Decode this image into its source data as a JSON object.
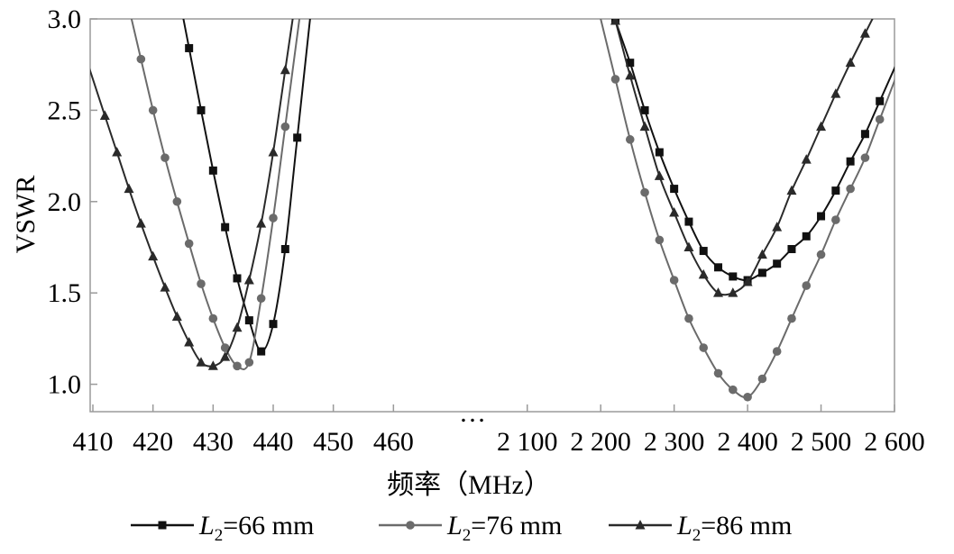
{
  "chart_data": {
    "type": "line",
    "title": "",
    "xlabel": "频率（MHz）",
    "ylabel": "VSWR",
    "ylim": [
      0.85,
      3.0
    ],
    "y_ticks": [
      "1.0",
      "1.5",
      "2.0",
      "2.5",
      "3.0"
    ],
    "y_tick_values": [
      1.0,
      1.5,
      2.0,
      2.5,
      3.0
    ],
    "x_break_symbol": "…",
    "panels": [
      {
        "name": "low-band",
        "xlim": [
          410,
          470
        ],
        "x_ticks": [
          410,
          420,
          430,
          440,
          450,
          460
        ],
        "x_tick_labels": [
          "410",
          "420",
          "430",
          "440",
          "450",
          "460"
        ]
      },
      {
        "name": "high-band",
        "xlim": [
          2050,
          2600
        ],
        "x_ticks": [
          2100,
          2200,
          2300,
          2400,
          2500,
          2600
        ],
        "x_tick_labels": [
          "2 100",
          "2 200",
          "2 300",
          "2 400",
          "2 500",
          "2 600"
        ]
      }
    ],
    "grid": false,
    "legend_position": "bottom",
    "series": [
      {
        "name_main": "L",
        "name_sub": "2",
        "name_rest": "=66 mm",
        "marker": "square",
        "color": "#111111",
        "low_band": {
          "x": [
            426,
            428,
            430,
            432,
            434,
            436,
            438,
            440,
            442,
            444
          ],
          "y": [
            2.84,
            2.5,
            2.17,
            1.86,
            1.58,
            1.35,
            1.18,
            1.33,
            1.74,
            2.35
          ]
        },
        "high_band": {
          "x": [
            2220,
            2240,
            2260,
            2280,
            2300,
            2320,
            2340,
            2360,
            2380,
            2400,
            2420,
            2440,
            2460,
            2480,
            2500,
            2520,
            2540,
            2560,
            2580
          ],
          "y": [
            2.99,
            2.76,
            2.5,
            2.27,
            2.07,
            1.89,
            1.73,
            1.64,
            1.59,
            1.57,
            1.61,
            1.66,
            1.74,
            1.81,
            1.92,
            2.06,
            2.22,
            2.37,
            2.55
          ]
        }
      },
      {
        "name_main": "L",
        "name_sub": "2",
        "name_rest": "=76 mm",
        "marker": "circle",
        "color": "#6b6b6b",
        "low_band": {
          "x": [
            418,
            420,
            422,
            424,
            426,
            428,
            430,
            432,
            434,
            436,
            438,
            440,
            442
          ],
          "y": [
            2.78,
            2.5,
            2.24,
            2.0,
            1.77,
            1.55,
            1.36,
            1.2,
            1.1,
            1.12,
            1.47,
            1.91,
            2.41
          ]
        },
        "high_band": {
          "x": [
            2220,
            2240,
            2260,
            2280,
            2300,
            2320,
            2340,
            2360,
            2380,
            2400,
            2420,
            2440,
            2460,
            2480,
            2500,
            2520,
            2540,
            2560,
            2580
          ],
          "y": [
            2.67,
            2.34,
            2.05,
            1.79,
            1.57,
            1.36,
            1.2,
            1.06,
            0.97,
            0.93,
            1.03,
            1.18,
            1.36,
            1.54,
            1.71,
            1.9,
            2.07,
            2.24,
            2.45
          ]
        }
      },
      {
        "name_main": "L",
        "name_sub": "2",
        "name_rest": "=86 mm",
        "marker": "triangle",
        "color": "#2a2a2a",
        "low_band": {
          "x": [
            412,
            414,
            416,
            418,
            420,
            422,
            424,
            426,
            428,
            430,
            432,
            434,
            436,
            438,
            440,
            442
          ],
          "y": [
            2.47,
            2.27,
            2.07,
            1.88,
            1.7,
            1.53,
            1.37,
            1.23,
            1.12,
            1.1,
            1.15,
            1.31,
            1.57,
            1.88,
            2.27,
            2.72
          ]
        },
        "high_band": {
          "x": [
            2220,
            2240,
            2260,
            2280,
            2300,
            2320,
            2340,
            2360,
            2380,
            2400,
            2420,
            2440,
            2460,
            2480,
            2500,
            2520,
            2540,
            2560,
            2580
          ],
          "y": [
            2.99,
            2.69,
            2.41,
            2.14,
            1.94,
            1.75,
            1.6,
            1.5,
            1.5,
            1.56,
            1.71,
            1.86,
            2.06,
            2.23,
            2.41,
            2.59,
            2.76,
            2.92,
            3.08
          ]
        }
      }
    ]
  }
}
